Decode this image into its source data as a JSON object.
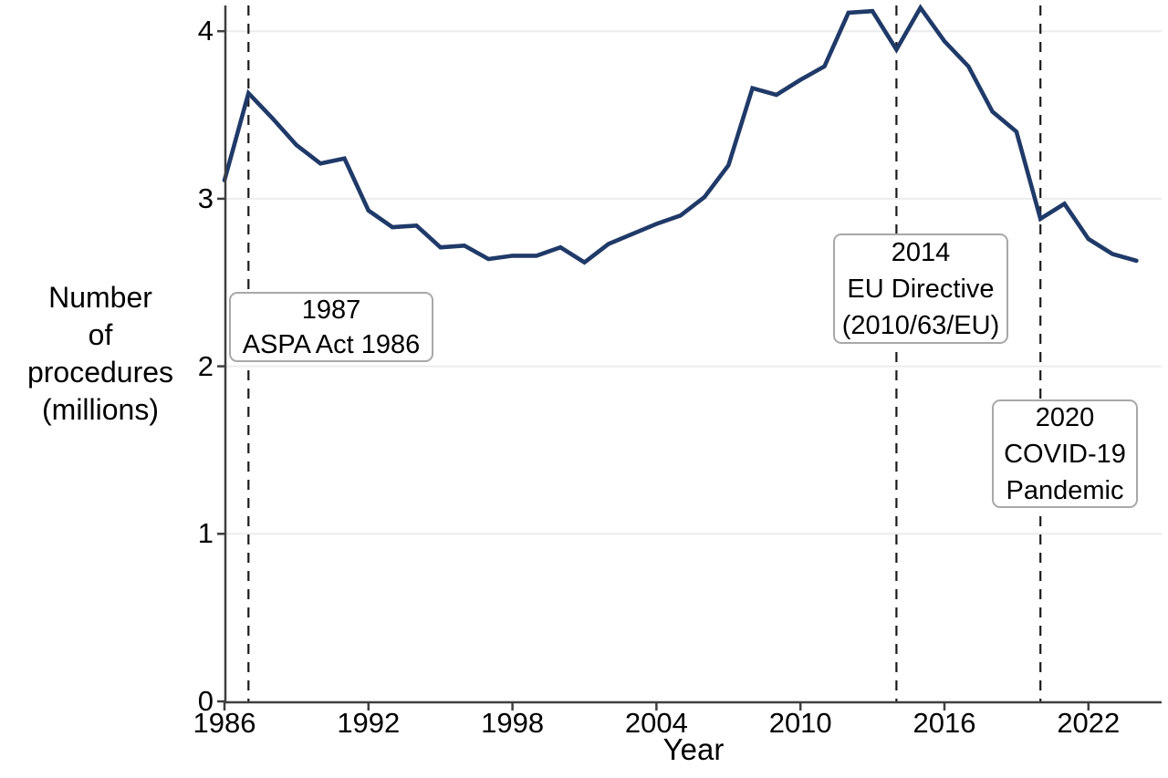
{
  "figure": {
    "y_axis_label_lines": [
      "Number",
      "of",
      "procedures",
      "(millions)"
    ],
    "x_axis_label": "Year"
  },
  "annotations": [
    {
      "id": "annot-1987",
      "year": 1987,
      "lines": [
        "1987",
        "ASPA Act 1986"
      ]
    },
    {
      "id": "annot-2014",
      "year": 2014,
      "lines": [
        "2014",
        "EU Directive",
        "(2010/63/EU)"
      ]
    },
    {
      "id": "annot-2020",
      "year": 2020,
      "lines": [
        "2020",
        "COVID-19",
        "Pandemic"
      ]
    }
  ],
  "colors": {
    "line": "#1f3a68",
    "axis": "#3f3f3f",
    "grid": "#ececec",
    "event_line": "#1a1a1a",
    "annotation_border": "#a8a8a8",
    "background": "#ffffff",
    "text": "#000000"
  },
  "chart_data": {
    "type": "line",
    "title": "",
    "xlabel": "Year",
    "ylabel": "Number of procedures (millions)",
    "x": [
      1986,
      1987,
      1988,
      1989,
      1990,
      1991,
      1992,
      1993,
      1994,
      1995,
      1996,
      1997,
      1998,
      1999,
      2000,
      2001,
      2002,
      2003,
      2004,
      2005,
      2006,
      2007,
      2008,
      2009,
      2010,
      2011,
      2012,
      2013,
      2014,
      2015,
      2016,
      2017,
      2018,
      2019,
      2020,
      2021,
      2022,
      2023,
      2024
    ],
    "series": [
      {
        "name": "Number of procedures (millions)",
        "values": [
          3.11,
          3.63,
          3.48,
          3.32,
          3.21,
          3.24,
          2.93,
          2.83,
          2.84,
          2.71,
          2.72,
          2.64,
          2.66,
          2.66,
          2.71,
          2.62,
          2.73,
          2.79,
          2.85,
          2.9,
          3.01,
          3.2,
          3.66,
          3.62,
          3.71,
          3.79,
          4.11,
          4.12,
          3.89,
          4.14,
          3.94,
          3.79,
          3.52,
          3.4,
          2.88,
          2.97,
          2.76,
          2.67,
          2.63
        ]
      }
    ],
    "x_ticks": [
      1986,
      1992,
      1998,
      2004,
      2010,
      2016,
      2022
    ],
    "y_ticks": [
      0,
      1,
      2,
      3,
      4
    ],
    "xlim": [
      1986,
      2025
    ],
    "ylim": [
      0,
      4.15
    ],
    "grid": "horizontal-only",
    "legend": "none",
    "event_line_years": [
      1987,
      2014,
      2020
    ]
  }
}
